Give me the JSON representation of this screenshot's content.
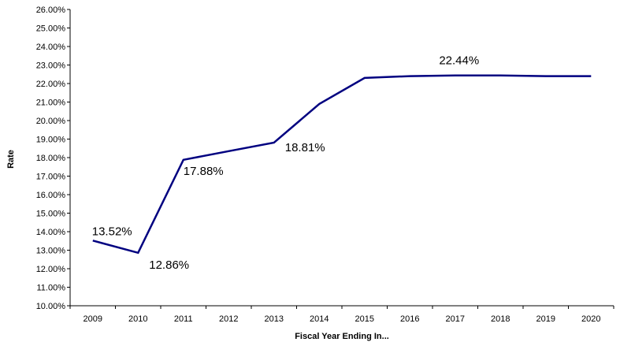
{
  "chart_data": {
    "type": "line",
    "xlabel": "Fiscal Year Ending In...",
    "ylabel": "Rate",
    "ylim": [
      10,
      26
    ],
    "y_tick_step": 1,
    "y_tick_format": "percent_2dp",
    "grid": false,
    "legend": "none",
    "line_color": "#000080",
    "categories": [
      "2009",
      "2010",
      "2011",
      "2012",
      "2013",
      "2014",
      "2015",
      "2016",
      "2017",
      "2018",
      "2019",
      "2020"
    ],
    "series": [
      {
        "values": [
          13.52,
          12.86,
          17.88,
          18.35,
          18.81,
          20.9,
          22.3,
          22.4,
          22.44,
          22.44,
          22.4,
          22.4
        ]
      }
    ],
    "data_labels": [
      {
        "index": 0,
        "text": "13.52%"
      },
      {
        "index": 1,
        "text": "12.86%"
      },
      {
        "index": 2,
        "text": "17.88%"
      },
      {
        "index": 4,
        "text": "18.81%"
      },
      {
        "index": 8,
        "text": "22.44%"
      }
    ]
  }
}
